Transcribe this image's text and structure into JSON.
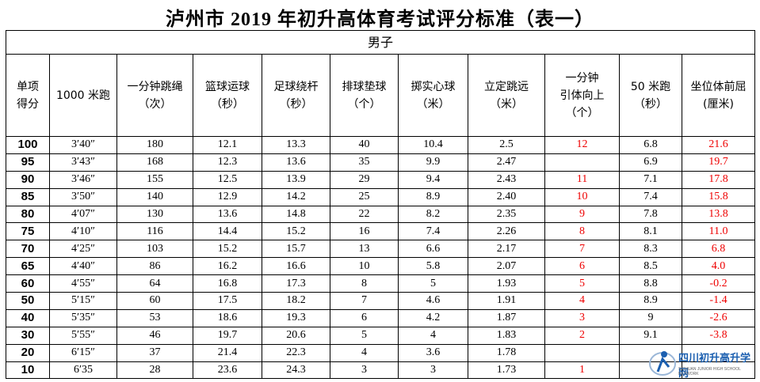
{
  "title": "泸州市 2019 年初升高体育考试评分标准（表一）",
  "table": {
    "group": "男子",
    "headers": [
      [
        "单项",
        "得分"
      ],
      [
        "1000 米跑"
      ],
      [
        "一分钟跳绳",
        "（次）"
      ],
      [
        "篮球运球",
        "（秒）"
      ],
      [
        "足球绕杆",
        "（秒）"
      ],
      [
        "排球垫球",
        "（个）"
      ],
      [
        "掷实心球",
        "（米）"
      ],
      [
        "立定跳远",
        "（米）"
      ],
      [
        "一分钟",
        "引体向上",
        "（个）"
      ],
      [
        "50 米跑",
        "（秒）"
      ],
      [
        "坐位体前屈",
        "(厘米)"
      ]
    ],
    "rows": [
      [
        "100",
        "3′40″",
        "180",
        "12.1",
        "13.3",
        "40",
        "10.4",
        "2.5",
        "12",
        "6.8",
        "21.6"
      ],
      [
        "95",
        "3′43″",
        "168",
        "12.3",
        "13.6",
        "35",
        "9.9",
        "2.47",
        null,
        "6.9",
        "19.7"
      ],
      [
        "90",
        "3′46″",
        "155",
        "12.5",
        "13.9",
        "29",
        "9.4",
        "2.43",
        "11",
        "7.1",
        "17.8"
      ],
      [
        "85",
        "3′50″",
        "140",
        "12.9",
        "14.2",
        "25",
        "8.9",
        "2.40",
        "10",
        "7.4",
        "15.8"
      ],
      [
        "80",
        "4′07″",
        "130",
        "13.6",
        "14.8",
        "22",
        "8.2",
        "2.35",
        "9",
        "7.8",
        "13.8"
      ],
      [
        "75",
        "4′10″",
        "116",
        "14.4",
        "15.2",
        "16",
        "7.4",
        "2.26",
        "8",
        "8.1",
        "11.0"
      ],
      [
        "70",
        "4′25″",
        "103",
        "15.2",
        "15.7",
        "13",
        "6.6",
        "2.17",
        "7",
        "8.3",
        "6.8"
      ],
      [
        "65",
        "4′40″",
        "86",
        "16.2",
        "16.6",
        "10",
        "5.8",
        "2.07",
        "6",
        "8.5",
        "4.0"
      ],
      [
        "60",
        "4′55″",
        "64",
        "16.8",
        "17.3",
        "8",
        "5",
        "1.93",
        "5",
        "8.8",
        "-0.2"
      ],
      [
        "50",
        "5′15″",
        "60",
        "17.5",
        "18.2",
        "7",
        "4.6",
        "1.91",
        "4",
        "8.9",
        "-1.4"
      ],
      [
        "40",
        "5′35″",
        "53",
        "18.6",
        "19.3",
        "6",
        "4.2",
        "1.87",
        "3",
        "9",
        "-2.6"
      ],
      [
        "30",
        "5′55″",
        "46",
        "19.7",
        "20.6",
        "5",
        "4",
        "1.83",
        "2",
        "9.1",
        "-3.8"
      ],
      [
        "20",
        "6′15″",
        "37",
        "21.4",
        "22.3",
        "4",
        "3.6",
        "1.78",
        null,
        null,
        null
      ],
      [
        "10",
        "6′35",
        "28",
        "23.6",
        "24.3",
        "3",
        "3",
        "1.73",
        "1",
        null,
        null
      ]
    ],
    "red_columns": [
      8,
      10
    ]
  },
  "watermark": {
    "name": "四川初升高升学网",
    "subtitle": "SICHUAN JUNIOR HIGH SCHOOL NETWORK"
  }
}
